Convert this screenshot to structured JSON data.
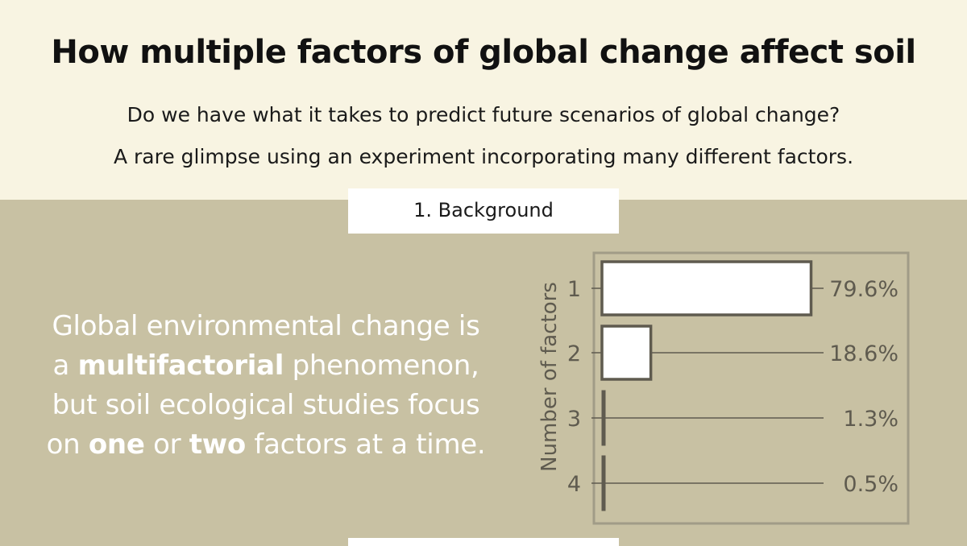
{
  "header": {
    "title": "How multiple factors of global change affect soil",
    "subtitle_line1": "Do we have what it takes to predict future scenarios of global change?",
    "subtitle_line2": "A rare glimpse using an experiment incorporating many different factors."
  },
  "section": {
    "label": "1. Background"
  },
  "body": {
    "line1": "Global environmental change is",
    "line2_prefix": "a ",
    "line2_bold": "multifactorial",
    "line2_suffix": " phenomenon,",
    "line3": "but soil ecological studies focus",
    "line4_prefix": "on ",
    "line4_bold1": "one",
    "line4_mid": " or ",
    "line4_bold2": "two",
    "line4_suffix": " factors at a time."
  },
  "colors": {
    "top_bg": "#f8f4e2",
    "section_bg": "#c8c1a3",
    "chart_ink": "#5f5b4f",
    "frame": "#a19c87"
  },
  "chart_data": {
    "type": "bar",
    "orientation": "horizontal",
    "ylabel": "Number of factors",
    "categories": [
      "1",
      "2",
      "3",
      "4"
    ],
    "values": [
      79.6,
      18.6,
      1.3,
      0.5
    ],
    "value_labels": [
      "79.6%",
      "18.6%",
      "1.3%",
      "0.5%"
    ],
    "xlim": [
      0,
      100
    ],
    "legend": "none",
    "grid": false
  }
}
